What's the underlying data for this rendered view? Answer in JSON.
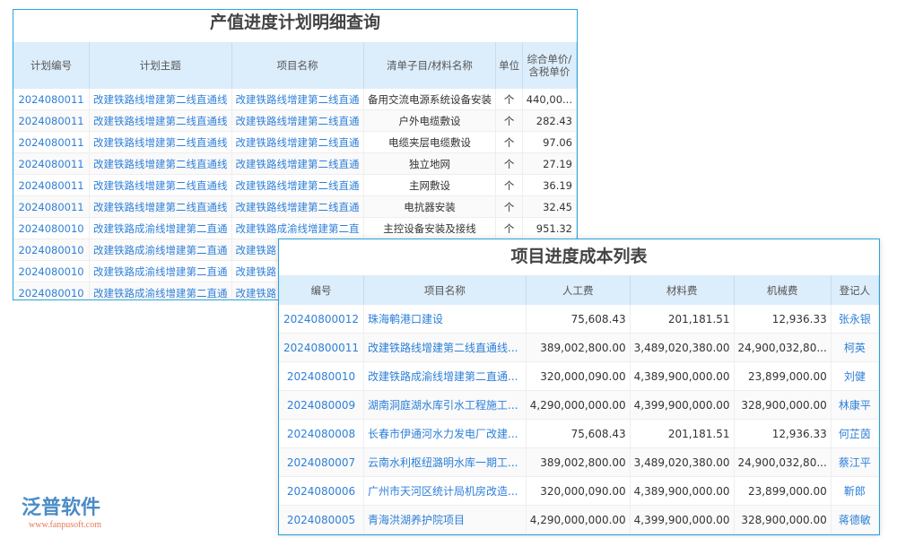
{
  "plan": {
    "title": "产值进度计划明细查询",
    "headers": [
      "计划编号",
      "计划主题",
      "项目名称",
      "清单子目/材料名称",
      "单位",
      "综合单价/含税单价"
    ],
    "rows": [
      [
        "2024080011",
        "改建铁路线增建第二线直通线",
        "改建铁路线增建第二线直通",
        "备用交流电源系统设备安装",
        "个",
        "440,00..."
      ],
      [
        "2024080011",
        "改建铁路线增建第二线直通线",
        "改建铁路线增建第二线直通",
        "户外电缆敷设",
        "个",
        "282.43"
      ],
      [
        "2024080011",
        "改建铁路线增建第二线直通线",
        "改建铁路线增建第二线直通",
        "电缆夹层电缆敷设",
        "个",
        "97.06"
      ],
      [
        "2024080011",
        "改建铁路线增建第二线直通线",
        "改建铁路线增建第二线直通",
        "独立地网",
        "个",
        "27.19"
      ],
      [
        "2024080011",
        "改建铁路线增建第二线直通线",
        "改建铁路线增建第二线直通",
        "主网敷设",
        "个",
        "36.19"
      ],
      [
        "2024080011",
        "改建铁路线增建第二线直通线",
        "改建铁路线增建第二线直通",
        "电抗器安装",
        "个",
        "32.45"
      ],
      [
        "2024080010",
        "改建铁路成渝线增建第二直通",
        "改建铁路成渝线增建第二直",
        "主控设备安装及接线",
        "个",
        "951.32"
      ],
      [
        "2024080010",
        "改建铁路成渝线增建第二直通",
        "改建铁路成渝线增建第二直",
        "",
        "",
        ""
      ],
      [
        "2024080010",
        "改建铁路成渝线增建第二直通",
        "改建铁路成渝线增建第二直",
        "",
        "",
        ""
      ],
      [
        "2024080010",
        "改建铁路成渝线增建第二直通",
        "改建铁路成渝线增建第二直",
        "",
        "",
        ""
      ]
    ]
  },
  "cost": {
    "title": "项目进度成本列表",
    "headers": [
      "编号",
      "项目名称",
      "人工费",
      "材料费",
      "机械费",
      "登记人"
    ],
    "rows": [
      [
        "20240800012",
        "珠海鹌港口建设",
        "75,608.43",
        "201,181.51",
        "12,936.33",
        "张永银"
      ],
      [
        "20240800011",
        "改建铁路线增建第二线直通线...",
        "389,002,800.00",
        "3,489,020,380.00",
        "24,900,032,80...",
        "柯英"
      ],
      [
        "2024080010",
        "改建铁路成渝线增建第二直通...",
        "320,000,090.00",
        "4,389,900,000.00",
        "23,899,000.00",
        "刘健"
      ],
      [
        "2024080009",
        "湖南洞庭湖水库引水工程施工...",
        "4,290,000,000.00",
        "4,399,900,000.00",
        "328,900,000.00",
        "林康平"
      ],
      [
        "2024080008",
        "长春市伊通河水力发电厂改建...",
        "75,608.43",
        "201,181.51",
        "12,936.33",
        "何芷茵"
      ],
      [
        "2024080007",
        "云南水利枢纽潞明水库一期工...",
        "389,002,800.00",
        "3,489,020,380.00",
        "24,900,032,80...",
        "蔡江平"
      ],
      [
        "2024080006",
        "广州市天河区统计局机房改造...",
        "320,000,090.00",
        "4,389,900,000.00",
        "23,899,000.00",
        "靳郎"
      ],
      [
        "2024080005",
        "青海洪湖养护院项目",
        "4,290,000,000.00",
        "4,399,900,000.00",
        "328,900,000.00",
        "蒋德敏"
      ]
    ]
  },
  "watermark": {
    "brand": "泛普软件",
    "url": "www.fanpusoft.com"
  }
}
